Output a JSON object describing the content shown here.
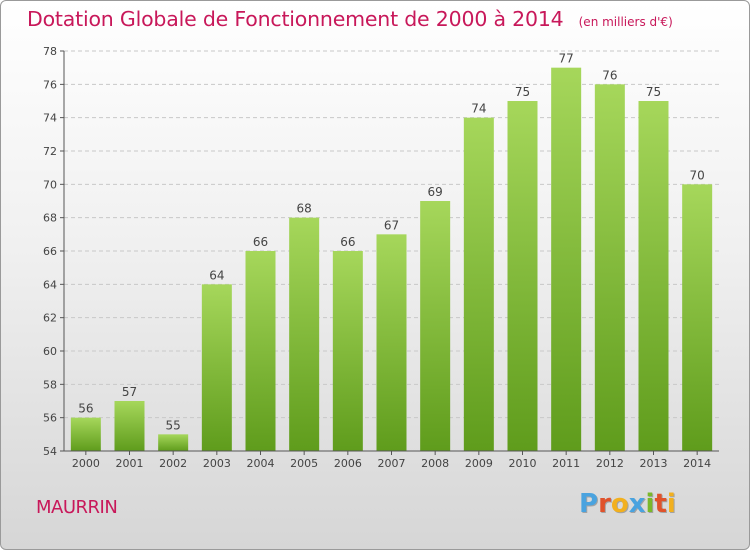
{
  "header": {
    "title": "Dotation Globale de Fonctionnement de 2000 à 2014",
    "unit": "(en milliers d'€)"
  },
  "place": "MAURRIN",
  "logo": {
    "text": "Proxiti",
    "colors": [
      "#4aa3df",
      "#e0522b",
      "#f2b01e",
      "#4aa3df",
      "#7ab829",
      "#e0522b",
      "#f2b01e"
    ]
  },
  "colors": {
    "bar_top": "#a6d75b",
    "bar_bottom": "#5f9c1c",
    "title": "#c8185a",
    "axis": "#555555",
    "grid": "#c8c8c8"
  },
  "chart_data": {
    "type": "bar",
    "categories": [
      "2000",
      "2001",
      "2002",
      "2003",
      "2004",
      "2005",
      "2006",
      "2007",
      "2008",
      "2009",
      "2010",
      "2011",
      "2012",
      "2013",
      "2014"
    ],
    "values": [
      56,
      57,
      55,
      64,
      66,
      68,
      66,
      67,
      69,
      74,
      75,
      77,
      76,
      75,
      70
    ],
    "data_labels": [
      "56",
      "57",
      "55",
      "64",
      "66",
      "68",
      "66",
      "67",
      "69",
      "74",
      "75",
      "77",
      "76",
      "75",
      "70"
    ],
    "title": "Dotation Globale de Fonctionnement de 2000 à 2014",
    "xlabel": "",
    "ylabel": "",
    "ylim": [
      54,
      78
    ],
    "yticks": [
      54,
      56,
      58,
      60,
      62,
      64,
      66,
      68,
      70,
      72,
      74,
      76,
      78
    ],
    "grid": true
  }
}
